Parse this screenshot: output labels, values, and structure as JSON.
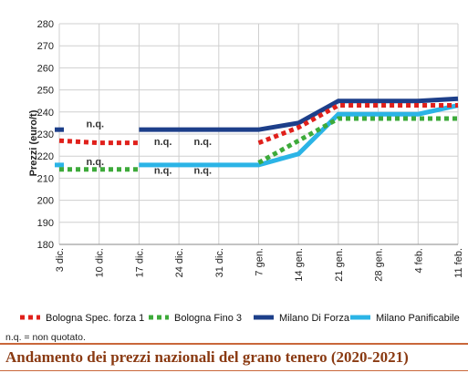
{
  "chart_data": {
    "type": "line",
    "title": "Andamento dei prezzi nazionali del grano tenero (2020-2021)",
    "ylabel": "Prezzi (euro/t)",
    "xlabel": "",
    "ylim": [
      180,
      280
    ],
    "yticks": [
      "180",
      "190",
      "200",
      "210",
      "220",
      "230",
      "240",
      "250",
      "260",
      "270",
      "280"
    ],
    "categories": [
      "3 dic.",
      "10 dic.",
      "17 dic.",
      "24 dic.",
      "31 dic.",
      "7 gen.",
      "14 gen.",
      "21 gen.",
      "28 gen.",
      "4 feb.",
      "11 feb."
    ],
    "grid": true,
    "legend_position": "bottom",
    "series": [
      {
        "name": "Bologna Spec. forza 1",
        "color": "#e0201b",
        "style": "dotted",
        "values": [
          227,
          226,
          226,
          null,
          null,
          226,
          233,
          243,
          243,
          243,
          243
        ]
      },
      {
        "name": "Bologna Fino 3",
        "color": "#3daa3a",
        "style": "dotted",
        "values": [
          214,
          214,
          214,
          null,
          null,
          217,
          227,
          237,
          237,
          237,
          237
        ]
      },
      {
        "name": "Milano Di Forza",
        "color": "#1d3f8a",
        "style": "solid",
        "values": [
          232,
          null,
          232,
          232,
          232,
          232,
          235,
          245,
          245,
          245,
          246
        ]
      },
      {
        "name": "Milano Panificabile",
        "color": "#2bb4e6",
        "style": "solid",
        "values": [
          216,
          null,
          216,
          216,
          216,
          216,
          221,
          239,
          239,
          239,
          243
        ]
      }
    ],
    "annotations": [
      "n.q.",
      "n.q.",
      "n.q.",
      "n.q.",
      "n.q.",
      "n.q."
    ]
  },
  "footnote": "n.q. = non quotato.",
  "caption": "Andamento dei prezzi nazionali del grano tenero (2020-2021)"
}
